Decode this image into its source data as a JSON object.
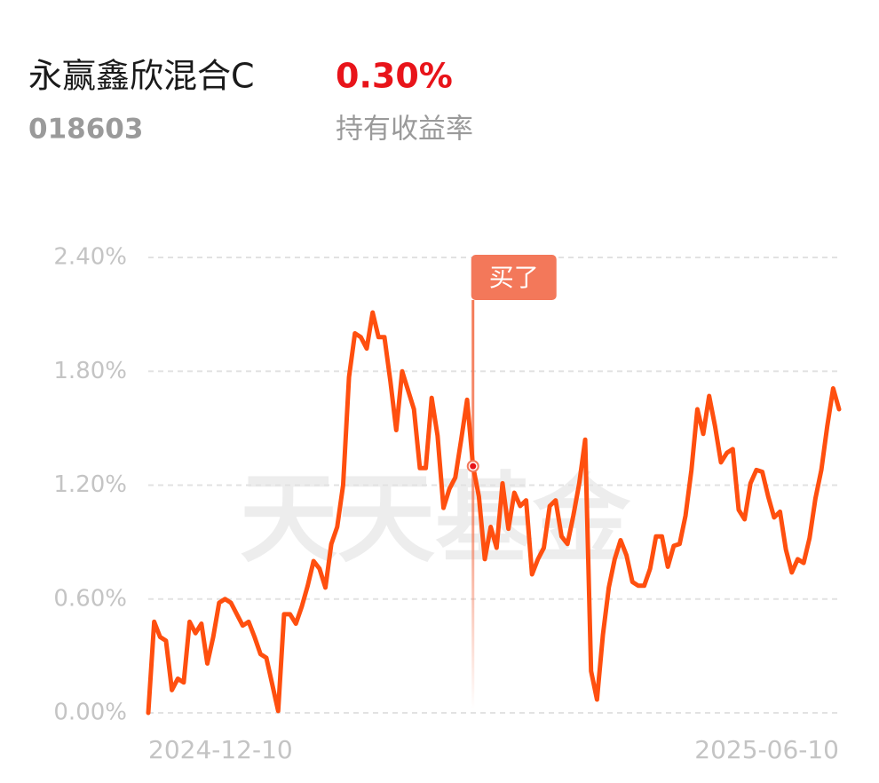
{
  "header": {
    "title": "永赢鑫欣混合C",
    "return_value": "0.30%",
    "code": "018603",
    "return_label": "持有收益率"
  },
  "chart_data": {
    "type": "line",
    "watermark": "天天基金",
    "categories": [
      "2024-12-10",
      null,
      null,
      null,
      null,
      null,
      null,
      null,
      null,
      null,
      null,
      null,
      null,
      null,
      null,
      null,
      null,
      null,
      null,
      null,
      null,
      null,
      null,
      null,
      null,
      null,
      null,
      null,
      null,
      null,
      null,
      null,
      null,
      null,
      null,
      null,
      null,
      null,
      null,
      null,
      null,
      null,
      null,
      null,
      null,
      null,
      null,
      null,
      null,
      null,
      null,
      null,
      null,
      null,
      null,
      null,
      null,
      null,
      null,
      null,
      null,
      null,
      null,
      null,
      null,
      null,
      null,
      null,
      null,
      null,
      null,
      null,
      null,
      null,
      null,
      null,
      null,
      null,
      null,
      null,
      null,
      null,
      null,
      null,
      null,
      null,
      null,
      null,
      null,
      null,
      null,
      null,
      null,
      null,
      null,
      null,
      null,
      null,
      null,
      null,
      null,
      null,
      null,
      null,
      null,
      null,
      null,
      null,
      null,
      null,
      null,
      null,
      null,
      null,
      null,
      null,
      null,
      "2025-06-10"
    ],
    "series": [
      {
        "color": "#ff4f0f",
        "values": [
          0.0,
          0.48,
          0.4,
          0.38,
          0.12,
          0.18,
          0.16,
          0.48,
          0.42,
          0.47,
          0.26,
          0.4,
          0.58,
          0.6,
          0.58,
          0.52,
          0.46,
          0.48,
          0.4,
          0.31,
          0.29,
          0.15,
          0.01,
          0.52,
          0.52,
          0.47,
          0.56,
          0.67,
          0.8,
          0.76,
          0.66,
          0.89,
          0.98,
          1.2,
          1.77,
          2.0,
          1.98,
          1.92,
          2.11,
          1.98,
          1.98,
          1.75,
          1.49,
          1.8,
          1.7,
          1.6,
          1.29,
          1.29,
          1.66,
          1.46,
          1.08,
          1.18,
          1.24,
          1.44,
          1.65,
          1.3,
          1.14,
          0.81,
          0.98,
          0.87,
          1.21,
          0.97,
          1.16,
          1.09,
          1.12,
          0.73,
          0.81,
          0.87,
          1.09,
          1.12,
          0.93,
          0.89,
          1.04,
          1.21,
          1.44,
          0.22,
          0.07,
          0.41,
          0.66,
          0.81,
          0.91,
          0.83,
          0.69,
          0.67,
          0.67,
          0.76,
          0.93,
          0.93,
          0.77,
          0.88,
          0.89,
          1.04,
          1.28,
          1.6,
          1.47,
          1.67,
          1.51,
          1.32,
          1.37,
          1.39,
          1.07,
          1.02,
          1.21,
          1.28,
          1.27,
          1.14,
          1.03,
          1.06,
          0.86,
          0.74,
          0.81,
          0.79,
          0.92,
          1.13,
          1.28,
          1.51,
          1.71,
          1.6
        ]
      }
    ],
    "annotations": [
      {
        "text": "买了",
        "at": 55
      }
    ],
    "ylim": [
      0,
      2.4
    ],
    "yticks": [
      {
        "value": 0,
        "label": "0.00%"
      },
      {
        "value": 0.6,
        "label": "0.60%"
      },
      {
        "value": 1.2,
        "label": "1.20%"
      },
      {
        "value": 1.8,
        "label": "1.80%"
      },
      {
        "value": 2.4,
        "label": "2.40%"
      }
    ],
    "grid": true
  }
}
